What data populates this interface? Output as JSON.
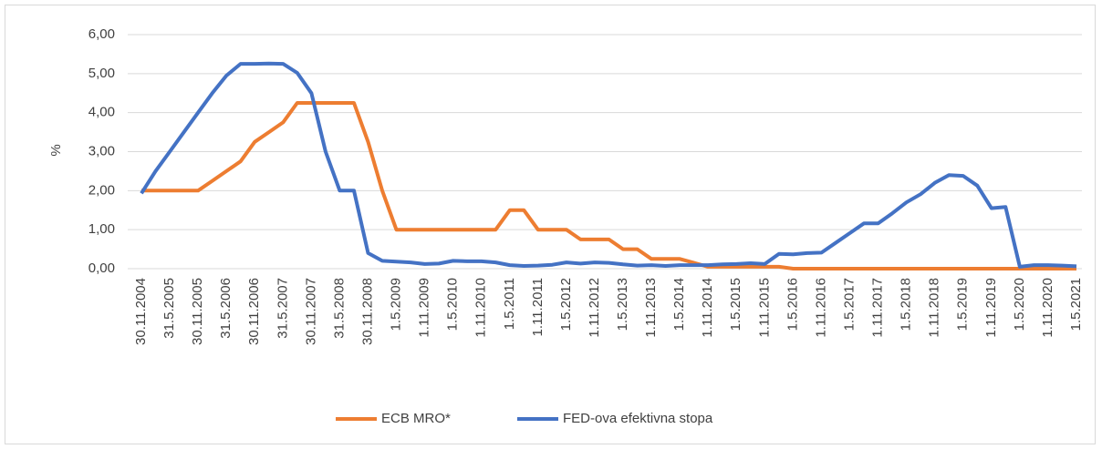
{
  "chart_data": {
    "type": "line",
    "y_axis_label": "%",
    "categories": [
      "30.11.2004",
      null,
      "31.5.2005",
      null,
      "30.11.2005",
      null,
      "31.5.2006",
      null,
      "30.11.2006",
      null,
      "31.5.2007",
      null,
      "30.11.2007",
      null,
      "31.5.2008",
      null,
      "30.11.2008",
      null,
      "1.5.2009",
      null,
      "1.11.2009",
      null,
      "1.5.2010",
      null,
      "1.11.2010",
      null,
      "1.5.2011",
      null,
      "1.11.2011",
      null,
      "1.5.2012",
      null,
      "1.11.2012",
      null,
      "1.5.2013",
      null,
      "1.11.2013",
      null,
      "1.5.2014",
      null,
      "1.11.2014",
      null,
      "1.5.2015",
      null,
      "1.11.2015",
      null,
      "1.5.2016",
      null,
      "1.11.2016",
      null,
      "1.5.2017",
      null,
      "1.11.2017",
      null,
      "1.5.2018",
      null,
      "1.11.2018",
      null,
      "1.5.2019",
      null,
      "1.11.2019",
      null,
      "1.5.2020",
      null,
      "1.11.2020",
      null,
      "1.5.2021"
    ],
    "series": [
      {
        "name": "ECB MRO*",
        "color": "#ed7d31",
        "values": [
          2.0,
          2.0,
          2.0,
          2.0,
          2.0,
          2.25,
          2.5,
          2.75,
          3.25,
          3.5,
          3.75,
          4.25,
          4.25,
          4.25,
          4.25,
          4.25,
          3.25,
          2.0,
          1.0,
          1.0,
          1.0,
          1.0,
          1.0,
          1.0,
          1.0,
          1.0,
          1.5,
          1.5,
          1.0,
          1.0,
          1.0,
          0.75,
          0.75,
          0.75,
          0.5,
          0.5,
          0.25,
          0.25,
          0.25,
          0.15,
          0.05,
          0.05,
          0.05,
          0.05,
          0.05,
          0.05,
          0,
          0,
          0,
          0,
          0,
          0,
          0,
          0,
          0,
          0,
          0,
          0,
          0,
          0,
          0,
          0,
          0,
          0,
          0,
          0,
          0
        ]
      },
      {
        "name": "FED-ova efektivna stopa",
        "color": "#4472c4",
        "values": [
          1.93,
          2.5,
          3.0,
          3.5,
          4.0,
          4.5,
          4.95,
          5.25,
          5.25,
          5.26,
          5.25,
          5.02,
          4.5,
          3.0,
          2.0,
          2.0,
          0.4,
          0.2,
          0.18,
          0.16,
          0.12,
          0.13,
          0.2,
          0.19,
          0.19,
          0.16,
          0.09,
          0.07,
          0.08,
          0.1,
          0.16,
          0.13,
          0.16,
          0.15,
          0.11,
          0.08,
          0.09,
          0.07,
          0.09,
          0.09,
          0.09,
          0.11,
          0.12,
          0.14,
          0.12,
          0.38,
          0.37,
          0.4,
          0.41,
          0.66,
          0.91,
          1.16,
          1.16,
          1.42,
          1.7,
          1.91,
          2.2,
          2.4,
          2.38,
          2.13,
          1.55,
          1.58,
          0.05,
          0.09,
          0.09,
          0.08,
          0.06
        ]
      }
    ],
    "ylim": [
      0,
      6
    ],
    "yticks": [
      {
        "value": 0,
        "label": "0,00"
      },
      {
        "value": 1,
        "label": "1,00"
      },
      {
        "value": 2,
        "label": "2,00"
      },
      {
        "value": 3,
        "label": "3,00"
      },
      {
        "value": 4,
        "label": "4,00"
      },
      {
        "value": 5,
        "label": "5,00"
      },
      {
        "value": 6,
        "label": "6,00"
      }
    ],
    "grid": true,
    "legend": "bottom"
  }
}
